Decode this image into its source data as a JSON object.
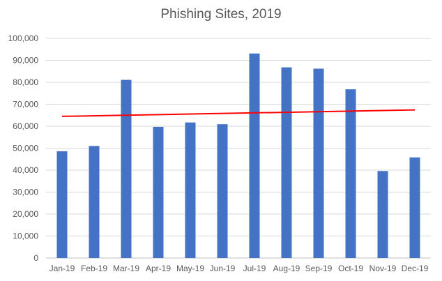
{
  "chart_data": {
    "type": "bar",
    "title": "Phishing Sites, 2019",
    "xlabel": "",
    "ylabel": "",
    "categories": [
      "Jan-19",
      "Feb-19",
      "Mar-19",
      "Apr-19",
      "May-19",
      "Jun-19",
      "Jul-19",
      "Aug-19",
      "Sep-19",
      "Oct-19",
      "Nov-19",
      "Dec-19"
    ],
    "values": [
      48600,
      51000,
      81100,
      59700,
      61700,
      60900,
      93100,
      86800,
      86200,
      76800,
      39600,
      45800
    ],
    "ylim": [
      0,
      100000
    ],
    "yticks": [
      "0",
      "10,000",
      "20,000",
      "30,000",
      "40,000",
      "50,000",
      "60,000",
      "70,000",
      "80,000",
      "90,000",
      "100,000"
    ],
    "grid": true,
    "legend": "none",
    "bar_color": "#4472C4",
    "trendline": {
      "type": "linear",
      "color": "#FF0000"
    }
  }
}
